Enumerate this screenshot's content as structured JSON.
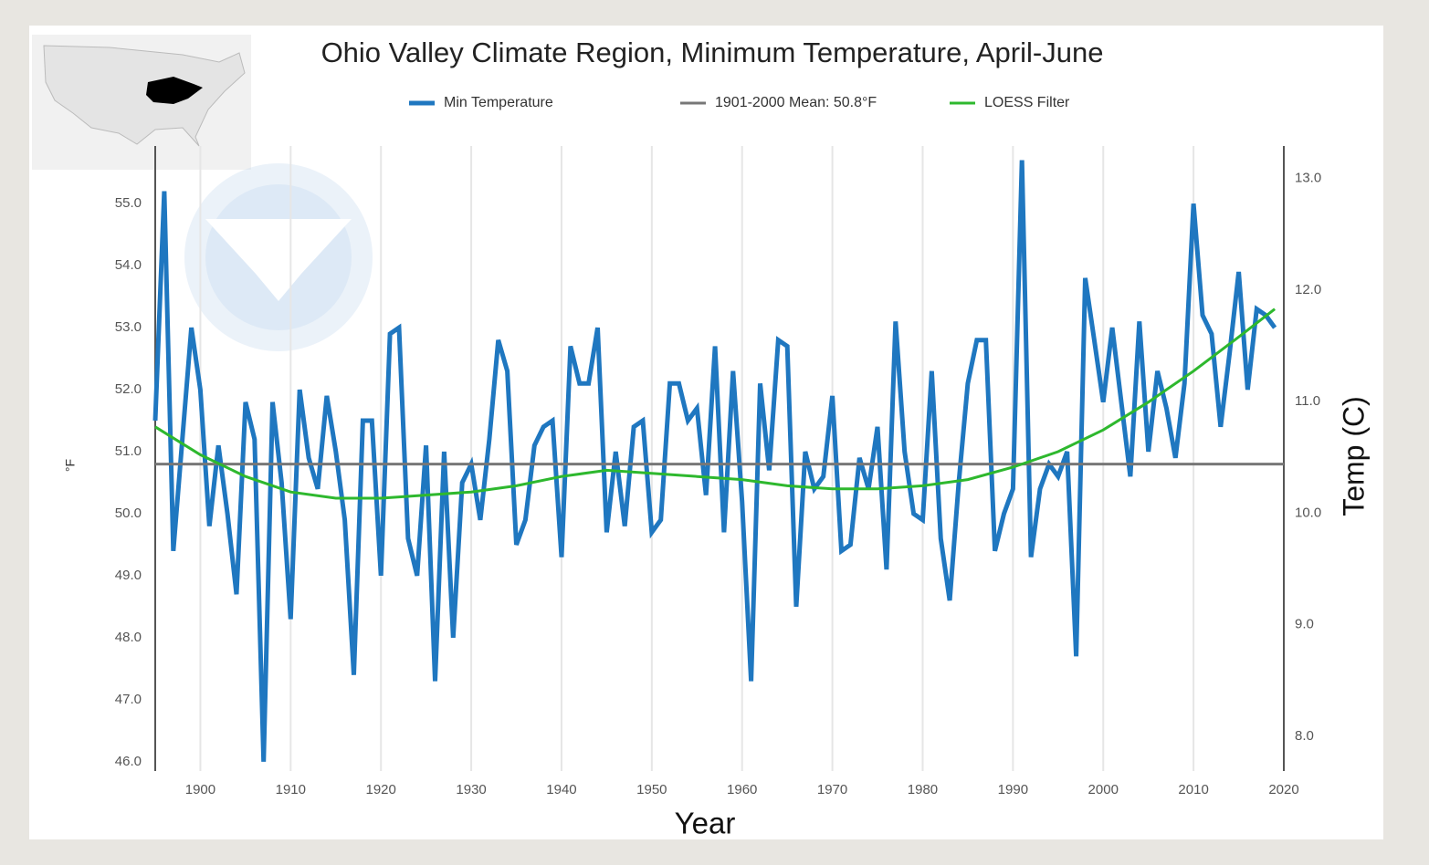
{
  "chart_data": {
    "type": "line",
    "title": "Ohio Valley Climate Region, Minimum Temperature, April-June",
    "y_label": "°F",
    "y2_label": "Temp (C)",
    "x_label": "Year",
    "x": [
      1895,
      1896,
      1897,
      1898,
      1899,
      1900,
      1901,
      1902,
      1903,
      1904,
      1905,
      1906,
      1907,
      1908,
      1909,
      1910,
      1911,
      1912,
      1913,
      1914,
      1915,
      1916,
      1917,
      1918,
      1919,
      1920,
      1921,
      1922,
      1923,
      1924,
      1925,
      1926,
      1927,
      1928,
      1929,
      1930,
      1931,
      1932,
      1933,
      1934,
      1935,
      1936,
      1937,
      1938,
      1939,
      1940,
      1941,
      1942,
      1943,
      1944,
      1945,
      1946,
      1947,
      1948,
      1949,
      1950,
      1951,
      1952,
      1953,
      1954,
      1955,
      1956,
      1957,
      1958,
      1959,
      1960,
      1961,
      1962,
      1963,
      1964,
      1965,
      1966,
      1967,
      1968,
      1969,
      1970,
      1971,
      1972,
      1973,
      1974,
      1975,
      1976,
      1977,
      1978,
      1979,
      1980,
      1981,
      1982,
      1983,
      1984,
      1985,
      1986,
      1987,
      1988,
      1989,
      1990,
      1991,
      1992,
      1993,
      1994,
      1995,
      1996,
      1997,
      1998,
      1999,
      2000,
      2001,
      2002,
      2003,
      2004,
      2005,
      2006,
      2007,
      2008,
      2009,
      2010,
      2011,
      2012,
      2013,
      2014,
      2015,
      2016,
      2017,
      2018,
      2019
    ],
    "series": [
      {
        "name": "Min Temperature",
        "color": "#1f77c0",
        "values": [
          51.5,
          55.2,
          49.4,
          51.2,
          53.0,
          52.0,
          49.8,
          51.1,
          50.0,
          48.7,
          51.8,
          51.2,
          46.0,
          51.8,
          50.5,
          48.3,
          52.0,
          50.9,
          50.4,
          51.9,
          51.0,
          49.9,
          47.4,
          51.5,
          51.5,
          49.0,
          52.9,
          53.0,
          49.6,
          49.0,
          51.1,
          47.3,
          51.0,
          48.0,
          50.5,
          50.8,
          49.9,
          51.2,
          52.8,
          52.3,
          49.5,
          49.9,
          51.1,
          51.4,
          51.5,
          49.3,
          52.7,
          52.1,
          52.1,
          53.0,
          49.7,
          51.0,
          49.8,
          51.4,
          51.5,
          49.7,
          49.9,
          52.1,
          52.1,
          51.5,
          51.7,
          50.3,
          52.7,
          49.7,
          52.3,
          50.2,
          47.3,
          52.1,
          50.7,
          52.8,
          52.7,
          48.5,
          51.0,
          50.4,
          50.6,
          51.9,
          49.4,
          49.5,
          50.9,
          50.4,
          51.4,
          49.1,
          53.1,
          51.0,
          50.0,
          49.9,
          52.3,
          49.6,
          48.6,
          50.5,
          52.1,
          52.8,
          52.8,
          49.4,
          50.0,
          50.4,
          55.7,
          49.3,
          50.4,
          50.8,
          50.6,
          51.0,
          47.7,
          53.8,
          52.8,
          51.8,
          53.0,
          51.8,
          50.6,
          53.1,
          51.0,
          52.3,
          51.7,
          50.9,
          52.1,
          55.0,
          53.2,
          52.9,
          51.4,
          52.6,
          53.9,
          52.0,
          53.3,
          53.2,
          53.0
        ]
      },
      {
        "name": "1901-2000 Mean: 50.8°F",
        "color": "#777777",
        "value": 50.8
      },
      {
        "name": "LOESS Filter",
        "color": "#2eb82e",
        "x": [
          1895,
          1900,
          1905,
          1910,
          1915,
          1920,
          1925,
          1930,
          1935,
          1940,
          1945,
          1950,
          1955,
          1960,
          1965,
          1970,
          1975,
          1980,
          1985,
          1990,
          1995,
          2000,
          2005,
          2010,
          2015,
          2019
        ],
        "values": [
          51.4,
          50.95,
          50.6,
          50.35,
          50.25,
          50.25,
          50.3,
          50.35,
          50.45,
          50.6,
          50.7,
          50.65,
          50.6,
          50.55,
          50.45,
          50.4,
          50.4,
          50.45,
          50.55,
          50.75,
          51.0,
          51.35,
          51.8,
          52.3,
          52.85,
          53.3
        ]
      }
    ],
    "xlim": [
      1895,
      2020
    ],
    "xticks": [
      1900,
      1910,
      1920,
      1930,
      1940,
      1950,
      1960,
      1970,
      1980,
      1990,
      2000,
      2010,
      2020
    ],
    "ylim": [
      45.85,
      55.93
    ],
    "yticks": [
      {
        "value": 46,
        "label": "46.0"
      },
      {
        "value": 47,
        "label": "47.0"
      },
      {
        "value": 48,
        "label": "48.0"
      },
      {
        "value": 49,
        "label": "49.0"
      },
      {
        "value": 50,
        "label": "50.0"
      },
      {
        "value": 51,
        "label": "51.0"
      },
      {
        "value": 52,
        "label": "52.0"
      },
      {
        "value": 53,
        "label": "53.0"
      },
      {
        "value": 54,
        "label": "54.0"
      },
      {
        "value": 55,
        "label": "55.0"
      }
    ],
    "y2lim": [
      7.69,
      13.29
    ],
    "y2ticks": [
      {
        "value": 8,
        "label": "8.0"
      },
      {
        "value": 9,
        "label": "9.0"
      },
      {
        "value": 10,
        "label": "10.0"
      },
      {
        "value": 11,
        "label": "11.0"
      },
      {
        "value": 12,
        "label": "12.0"
      },
      {
        "value": 13,
        "label": "13.0"
      }
    ],
    "grid": "x"
  }
}
